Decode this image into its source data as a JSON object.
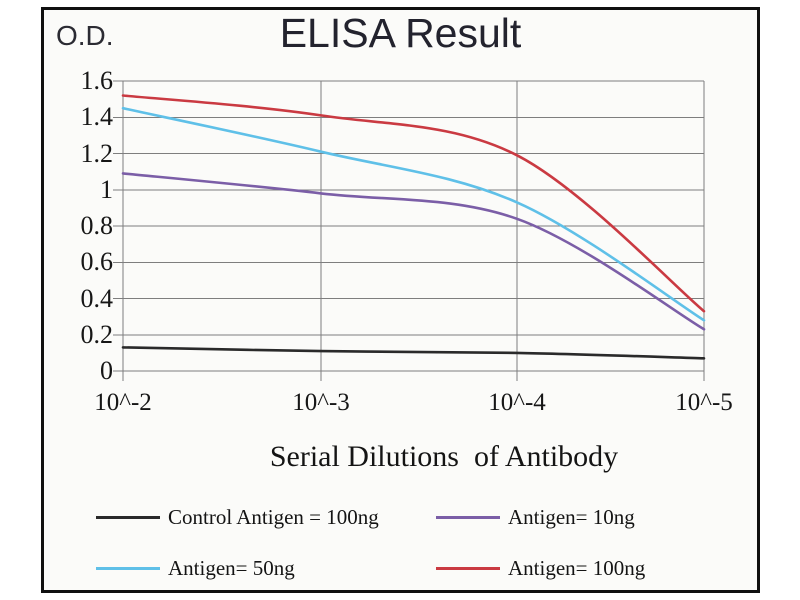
{
  "figure": {
    "title": "ELISA Result",
    "y_unit_label": "O.D.",
    "frame_border_color": "#101010",
    "plot_background": "#fbfbf9",
    "gridline_color": "#7e7e7e",
    "axis_color": "#7e7e7e"
  },
  "chart_data": {
    "type": "line",
    "title": "ELISA Result",
    "xlabel": "Serial Dilutions  of Antibody",
    "ylabel": "O.D.",
    "x_tick_labels": [
      "10^-2",
      "10^-3",
      "10^-4",
      "10^-5"
    ],
    "y_tick_labels": [
      "1.6",
      "1.4",
      "1.2",
      "1",
      "0.8",
      "0.6",
      "0.4",
      "0.2",
      "0"
    ],
    "ylim": [
      0,
      1.6
    ],
    "grid": true,
    "legend_position": "bottom",
    "series": [
      {
        "name": "Control Antigen = 100ng",
        "color": "#2a2a2a",
        "values": [
          0.13,
          0.11,
          0.1,
          0.07
        ]
      },
      {
        "name": "Antigen= 10ng",
        "color": "#7b5ea7",
        "values": [
          1.09,
          0.98,
          0.84,
          0.23
        ]
      },
      {
        "name": "Antigen= 50ng",
        "color": "#5fc0e8",
        "values": [
          1.45,
          1.21,
          0.93,
          0.28
        ]
      },
      {
        "name": "Antigen= 100ng",
        "color": "#ca3a42",
        "values": [
          1.52,
          1.41,
          1.19,
          0.33
        ]
      }
    ]
  }
}
